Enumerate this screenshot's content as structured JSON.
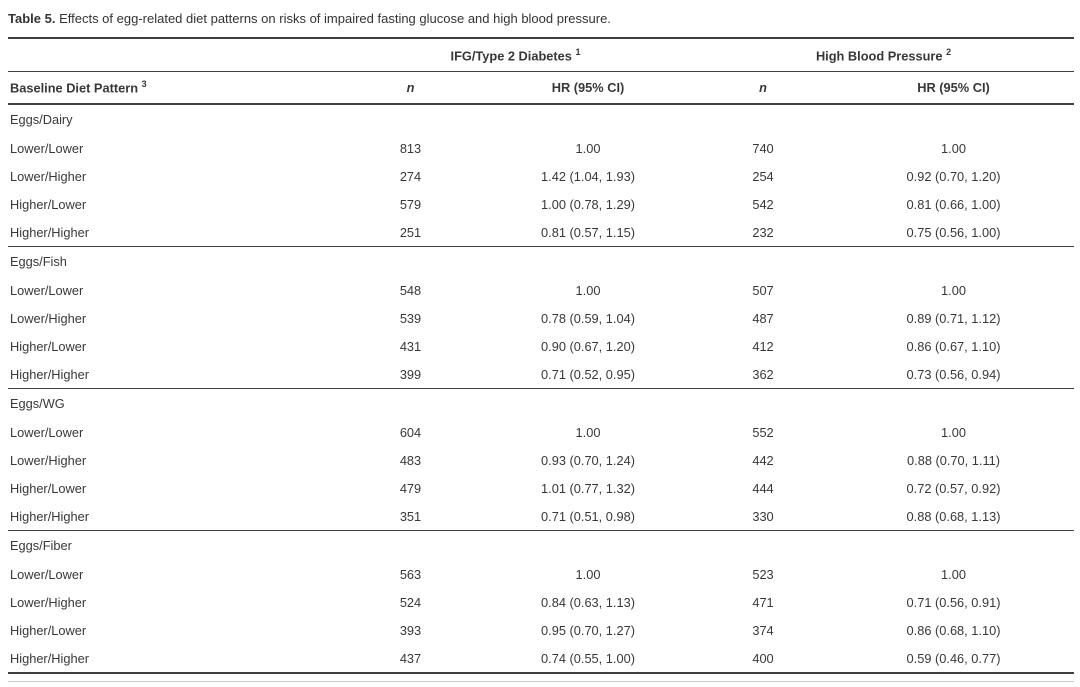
{
  "caption": {
    "label": "Table 5.",
    "text": " Effects of egg-related diet patterns on risks of impaired fasting glucose and high blood pressure."
  },
  "table": {
    "group_headers": [
      {
        "label": "IFG/Type 2 Diabetes",
        "sup": "1"
      },
      {
        "label": "High Blood Pressure",
        "sup": "2"
      }
    ],
    "col_headers": {
      "pattern_label": "Baseline Diet Pattern",
      "pattern_sup": "3",
      "n": "n",
      "hr": "HR (95% CI)"
    },
    "groups": [
      {
        "name": "Eggs/Dairy",
        "rows": [
          {
            "label": "Lower/Lower",
            "ifg_n": "813",
            "ifg_hr": "1.00",
            "hbp_n": "740",
            "hbp_hr": "1.00"
          },
          {
            "label": "Lower/Higher",
            "ifg_n": "274",
            "ifg_hr": "1.42 (1.04, 1.93)",
            "hbp_n": "254",
            "hbp_hr": "0.92 (0.70, 1.20)"
          },
          {
            "label": "Higher/Lower",
            "ifg_n": "579",
            "ifg_hr": "1.00 (0.78, 1.29)",
            "hbp_n": "542",
            "hbp_hr": "0.81 (0.66, 1.00)"
          },
          {
            "label": "Higher/Higher",
            "ifg_n": "251",
            "ifg_hr": "0.81 (0.57, 1.15)",
            "hbp_n": "232",
            "hbp_hr": "0.75 (0.56, 1.00)"
          }
        ]
      },
      {
        "name": "Eggs/Fish",
        "rows": [
          {
            "label": "Lower/Lower",
            "ifg_n": "548",
            "ifg_hr": "1.00",
            "hbp_n": "507",
            "hbp_hr": "1.00"
          },
          {
            "label": "Lower/Higher",
            "ifg_n": "539",
            "ifg_hr": "0.78 (0.59, 1.04)",
            "hbp_n": "487",
            "hbp_hr": "0.89 (0.71, 1.12)"
          },
          {
            "label": "Higher/Lower",
            "ifg_n": "431",
            "ifg_hr": "0.90 (0.67, 1.20)",
            "hbp_n": "412",
            "hbp_hr": "0.86 (0.67, 1.10)"
          },
          {
            "label": "Higher/Higher",
            "ifg_n": "399",
            "ifg_hr": "0.71 (0.52, 0.95)",
            "hbp_n": "362",
            "hbp_hr": "0.73 (0.56, 0.94)"
          }
        ]
      },
      {
        "name": "Eggs/WG",
        "rows": [
          {
            "label": "Lower/Lower",
            "ifg_n": "604",
            "ifg_hr": "1.00",
            "hbp_n": "552",
            "hbp_hr": "1.00"
          },
          {
            "label": "Lower/Higher",
            "ifg_n": "483",
            "ifg_hr": "0.93 (0.70, 1.24)",
            "hbp_n": "442",
            "hbp_hr": "0.88 (0.70, 1.11)"
          },
          {
            "label": "Higher/Lower",
            "ifg_n": "479",
            "ifg_hr": "1.01 (0.77, 1.32)",
            "hbp_n": "444",
            "hbp_hr": "0.72 (0.57, 0.92)"
          },
          {
            "label": "Higher/Higher",
            "ifg_n": "351",
            "ifg_hr": "0.71 (0.51, 0.98)",
            "hbp_n": "330",
            "hbp_hr": "0.88 (0.68, 1.13)"
          }
        ]
      },
      {
        "name": "Eggs/Fiber",
        "rows": [
          {
            "label": "Lower/Lower",
            "ifg_n": "563",
            "ifg_hr": "1.00",
            "hbp_n": "523",
            "hbp_hr": "1.00"
          },
          {
            "label": "Lower/Higher",
            "ifg_n": "524",
            "ifg_hr": "0.84 (0.63, 1.13)",
            "hbp_n": "471",
            "hbp_hr": "0.71 (0.56, 0.91)"
          },
          {
            "label": "Higher/Lower",
            "ifg_n": "393",
            "ifg_hr": "0.95 (0.70, 1.27)",
            "hbp_n": "374",
            "hbp_hr": "0.86 (0.68, 1.10)"
          },
          {
            "label": "Higher/Higher",
            "ifg_n": "437",
            "ifg_hr": "0.74 (0.55, 1.00)",
            "hbp_n": "400",
            "hbp_hr": "0.59 (0.46, 0.77)"
          }
        ]
      }
    ]
  },
  "colors": {
    "background": "#ffffff",
    "text": "#383838",
    "rule_dark": "#3f3f3f",
    "rule_light": "#cccccc"
  }
}
